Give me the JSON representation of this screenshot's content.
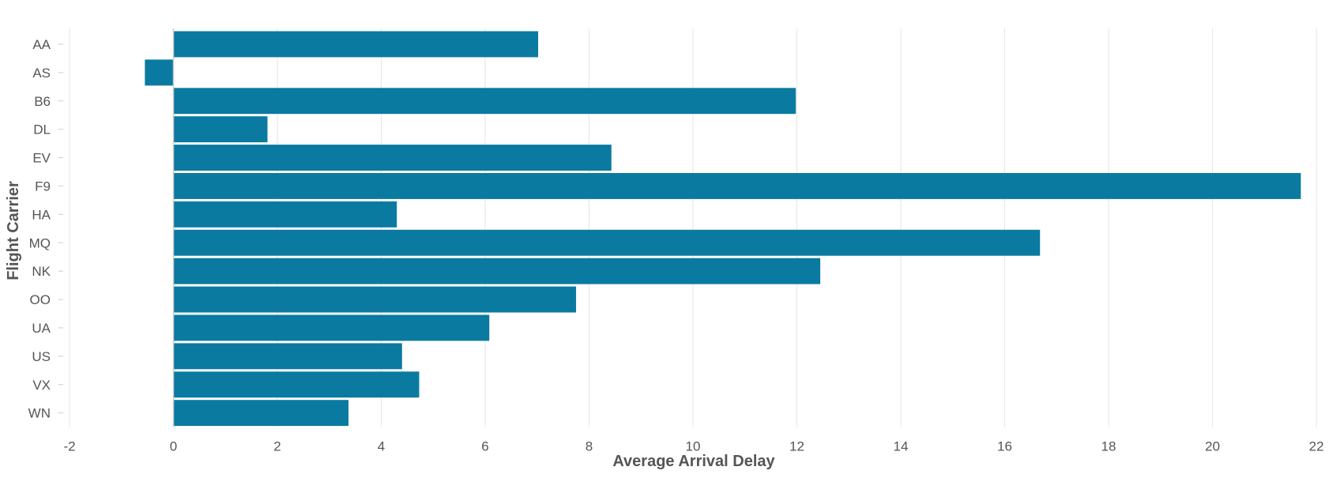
{
  "chart_data": {
    "type": "bar",
    "orientation": "horizontal",
    "categories": [
      "AA",
      "AS",
      "B6",
      "DL",
      "EV",
      "F9",
      "HA",
      "MQ",
      "NK",
      "OO",
      "UA",
      "US",
      "VX",
      "WN"
    ],
    "values": [
      7.02,
      -0.55,
      11.98,
      1.81,
      8.43,
      21.7,
      4.3,
      16.68,
      12.45,
      7.75,
      6.08,
      4.4,
      4.73,
      3.37
    ],
    "xlabel": "Average Arrival Delay",
    "ylabel": "Flight Carrier",
    "xlim": [
      -2,
      22
    ],
    "xticks": [
      "-2",
      "0",
      "2",
      "4",
      "6",
      "8",
      "10",
      "12",
      "14",
      "16",
      "18",
      "20",
      "22"
    ],
    "grid": true,
    "bar_color": "#0a7aa0",
    "grid_color": "#e6e6e6",
    "zero_line_color": "#cccccc",
    "text_color": "#555555"
  }
}
